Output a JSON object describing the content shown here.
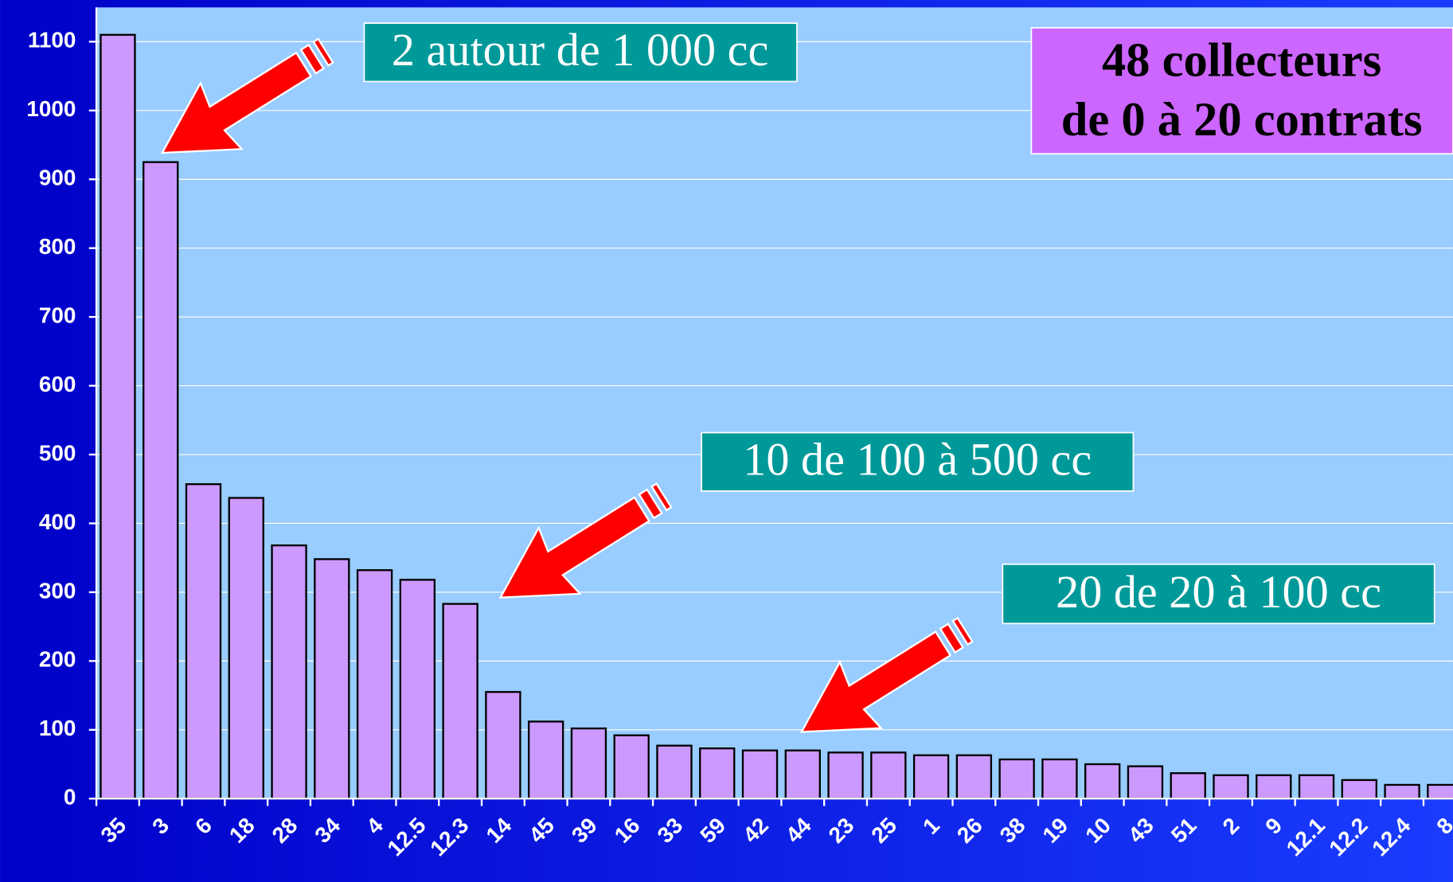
{
  "chart_data": {
    "type": "bar",
    "categories": [
      "35",
      "3",
      "6",
      "18",
      "28",
      "34",
      "4",
      "12.5",
      "12.3",
      "14",
      "45",
      "39",
      "16",
      "33",
      "59",
      "42",
      "44",
      "23",
      "25",
      "1",
      "26",
      "38",
      "19",
      "10",
      "43",
      "51",
      "2",
      "9",
      "12.1",
      "12.2",
      "12.4",
      "8"
    ],
    "values": [
      1110,
      925,
      457,
      437,
      368,
      348,
      332,
      318,
      283,
      155,
      112,
      102,
      92,
      77,
      73,
      70,
      70,
      67,
      67,
      63,
      63,
      57,
      57,
      50,
      47,
      37,
      34,
      34,
      34,
      27,
      20,
      20
    ],
    "color": "#cc99ff",
    "ylim": [
      0,
      1150
    ],
    "yticks": [
      0,
      100,
      200,
      300,
      400,
      500,
      600,
      700,
      800,
      900,
      1000,
      1100
    ],
    "grid": true,
    "callouts": [
      "2 autour de 1 000 cc",
      "10 de 100 à 500 cc",
      "20 de 20 à 100 cc"
    ],
    "info_box": [
      "48 collecteurs",
      "de 0 à 20 contrats"
    ]
  }
}
